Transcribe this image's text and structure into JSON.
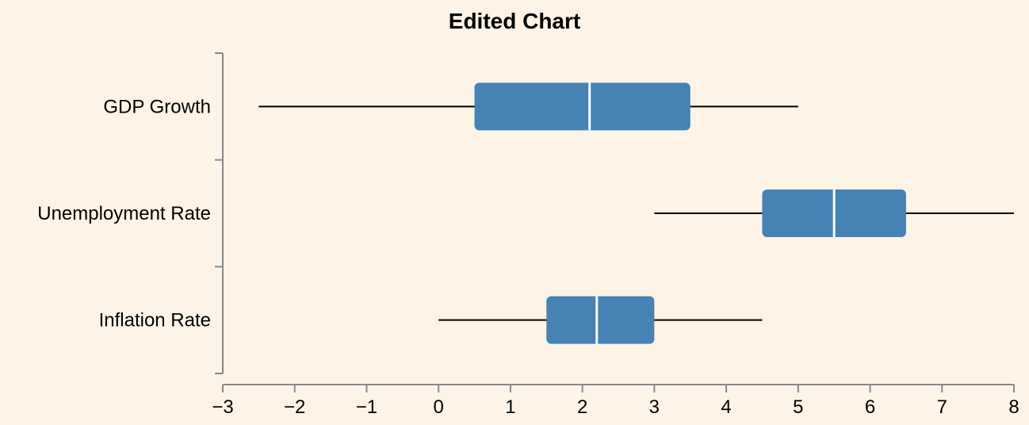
{
  "colors": {
    "background": "#fdf4e7",
    "box_fill": "#4682b4",
    "whisker": "#000000",
    "median": "#ffffff",
    "axis": "#888888"
  },
  "chart_data": {
    "type": "boxplot",
    "orientation": "horizontal",
    "title": "Edited Chart",
    "xlabel": "",
    "ylabel": "",
    "xlim": [
      -3,
      8
    ],
    "x_ticks": [
      -3,
      -2,
      -1,
      0,
      1,
      2,
      3,
      4,
      5,
      6,
      7,
      8
    ],
    "x_tick_labels": [
      "−3",
      "−2",
      "−1",
      "0",
      "1",
      "2",
      "3",
      "4",
      "5",
      "6",
      "7",
      "8"
    ],
    "grid": false,
    "categories": [
      "GDP Growth",
      "Unemployment Rate",
      "Inflation Rate"
    ],
    "boxes": [
      {
        "category": "GDP Growth",
        "min": -2.5,
        "q1": 0.5,
        "median": 2.1,
        "q3": 3.5,
        "max": 5.0
      },
      {
        "category": "Unemployment Rate",
        "min": 3.0,
        "q1": 4.5,
        "median": 5.5,
        "q3": 6.5,
        "max": 8.0
      },
      {
        "category": "Inflation Rate",
        "min": 0.0,
        "q1": 1.5,
        "median": 2.2,
        "q3": 3.0,
        "max": 4.5
      }
    ]
  }
}
